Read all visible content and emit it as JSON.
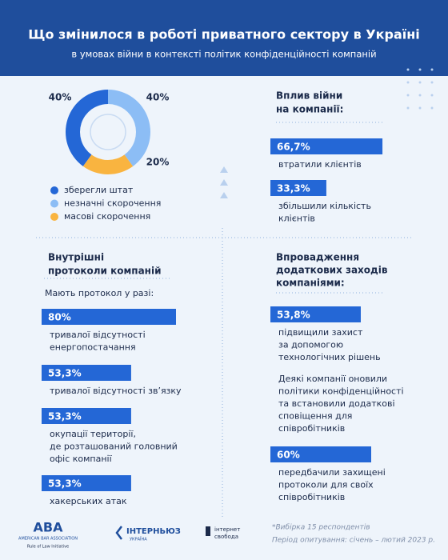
{
  "header": {
    "title": "Що змінилося в роботі приватного сектору в Україні",
    "subtitle": "в умовах війни в контексті політик конфіденційності компаній"
  },
  "staff_chart": {
    "type": "donut",
    "segments": [
      {
        "name": "зберегли штат",
        "value": 40,
        "value_label": "40%",
        "color": "#2467d6"
      },
      {
        "name": "незначні скорочення",
        "value": 40,
        "value_label": "40%",
        "color": "#8cbdf5"
      },
      {
        "name": "масові скорочення",
        "value": 20,
        "value_label": "20%",
        "color": "#f9b440"
      }
    ]
  },
  "war_impact": {
    "title_lines": [
      "Вплив війни",
      "на компанії:"
    ],
    "items": [
      {
        "value": 66.7,
        "value_label": "66,7%",
        "text_lines": [
          "втратили клієнтів"
        ]
      },
      {
        "value": 33.3,
        "value_label": "33,3%",
        "text_lines": [
          "збільшили кількість",
          "клієнтів"
        ]
      }
    ]
  },
  "protocols": {
    "title_lines": [
      "Внутрішні",
      "протоколи компаній"
    ],
    "intro": "Мають протокол у разі:",
    "items": [
      {
        "value": 80,
        "value_label": "80%",
        "text_lines": [
          "тривалої відсутності",
          "енергопостачання"
        ]
      },
      {
        "value": 53.3,
        "value_label": "53,3%",
        "text_lines": [
          "тривалої відсутності зв’язку"
        ]
      },
      {
        "value": 53.3,
        "value_label": "53,3%",
        "text_lines": [
          "окупації території,",
          "де розташований головний",
          "офіс компанії"
        ]
      },
      {
        "value": 53.3,
        "value_label": "53,3%",
        "text_lines": [
          "хакерських атак"
        ]
      }
    ]
  },
  "measures": {
    "title_lines": [
      "Впровадження",
      "додаткових заходів",
      "компаніями:"
    ],
    "items": [
      {
        "value": 53.8,
        "value_label": "53,8%",
        "text_lines": [
          "підвищили захист",
          "за допомогою",
          "технологічних рішень"
        ]
      },
      {
        "value": 60,
        "value_label": "60%",
        "text_lines": [
          "передбачили захищені",
          "протоколи для своїх",
          "співробітників"
        ]
      }
    ],
    "note_lines": [
      "Деякі компанії оновили",
      "політики конфіденційності",
      "та встановили додаткові",
      "сповіщення для",
      "співробітників"
    ]
  },
  "footer": {
    "aba": [
      "ABA",
      "AMERICAN BAR ASSOCIATION",
      "Rule of Law Initiative"
    ],
    "internews": [
      "ІНТЕРНЬЮЗ",
      "УКРАЇНА"
    ],
    "freedom": [
      "інтернет",
      "свобода"
    ],
    "notes": [
      "*Вибірка 15 респондентів",
      "Період опитування: січень – лютий 2023 р."
    ]
  }
}
